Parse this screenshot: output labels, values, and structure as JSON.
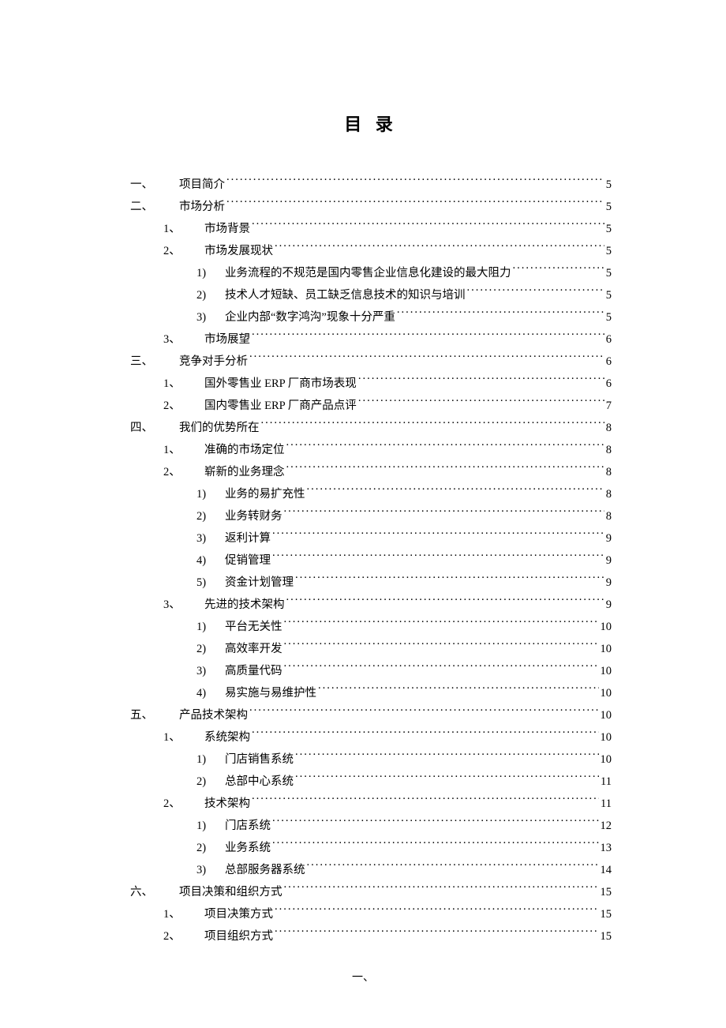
{
  "title": "目 录",
  "footer": "一、",
  "entries": [
    {
      "level": 1,
      "num": "一、",
      "text": "项目简介",
      "page": "5"
    },
    {
      "level": 1,
      "num": "二、",
      "text": "市场分析",
      "page": "5"
    },
    {
      "level": 2,
      "num": "1、",
      "text": "市场背景",
      "page": "5"
    },
    {
      "level": 2,
      "num": "2、",
      "text": "市场发展现状",
      "page": "5"
    },
    {
      "level": 3,
      "num": "1)",
      "text": "业务流程的不规范是国内零售企业信息化建设的最大阻力",
      "page": "5"
    },
    {
      "level": 3,
      "num": "2)",
      "text": "技术人才短缺、员工缺乏信息技术的知识与培训",
      "page": "5"
    },
    {
      "level": 3,
      "num": "3)",
      "text": "企业内部“数字鸿沟”现象十分严重",
      "page": "5"
    },
    {
      "level": 2,
      "num": "3、",
      "text": "市场展望",
      "page": "6"
    },
    {
      "level": 1,
      "num": "三、",
      "text": "竞争对手分析",
      "page": "6"
    },
    {
      "level": 2,
      "num": "1、",
      "text": "国外零售业 ERP 厂商市场表现",
      "page": "6"
    },
    {
      "level": 2,
      "num": "2、",
      "text": "国内零售业 ERP 厂商产品点评",
      "page": "7"
    },
    {
      "level": 1,
      "num": "四、",
      "text": "我们的优势所在",
      "page": "8"
    },
    {
      "level": 2,
      "num": "1、",
      "text": "准确的市场定位",
      "page": "8"
    },
    {
      "level": 2,
      "num": "2、",
      "text": "崭新的业务理念",
      "page": "8"
    },
    {
      "level": 3,
      "num": "1)",
      "text": "业务的易扩充性",
      "page": "8"
    },
    {
      "level": 3,
      "num": "2)",
      "text": "业务转财务",
      "page": "8"
    },
    {
      "level": 3,
      "num": "3)",
      "text": "返利计算",
      "page": "9"
    },
    {
      "level": 3,
      "num": "4)",
      "text": "促销管理",
      "page": "9"
    },
    {
      "level": 3,
      "num": "5)",
      "text": "资金计划管理",
      "page": "9"
    },
    {
      "level": 2,
      "num": "3、",
      "text": "先进的技术架构",
      "page": "9"
    },
    {
      "level": 3,
      "num": "1)",
      "text": "平台无关性",
      "page": "10"
    },
    {
      "level": 3,
      "num": "2)",
      "text": "高效率开发",
      "page": "10"
    },
    {
      "level": 3,
      "num": "3)",
      "text": "高质量代码",
      "page": "10"
    },
    {
      "level": 3,
      "num": "4)",
      "text": "易实施与易维护性",
      "page": "10"
    },
    {
      "level": 1,
      "num": "五、",
      "text": "产品技术架构",
      "page": "10"
    },
    {
      "level": 2,
      "num": "1、",
      "text": "系统架构",
      "page": "10"
    },
    {
      "level": 3,
      "num": "1)",
      "text": "门店销售系统",
      "page": "10"
    },
    {
      "level": 3,
      "num": "2)",
      "text": "总部中心系统",
      "page": "11"
    },
    {
      "level": 2,
      "num": "2、",
      "text": "技术架构",
      "page": "11"
    },
    {
      "level": 3,
      "num": "1)",
      "text": "门店系统",
      "page": "12"
    },
    {
      "level": 3,
      "num": "2)",
      "text": "业务系统",
      "page": "13"
    },
    {
      "level": 3,
      "num": "3)",
      "text": "总部服务器系统",
      "page": "14"
    },
    {
      "level": 1,
      "num": "六、",
      "text": "项目决策和组织方式",
      "page": "15"
    },
    {
      "level": 2,
      "num": "1、",
      "text": "项目决策方式",
      "page": "15"
    },
    {
      "level": 2,
      "num": "2、",
      "text": "项目组织方式",
      "page": "15"
    }
  ]
}
